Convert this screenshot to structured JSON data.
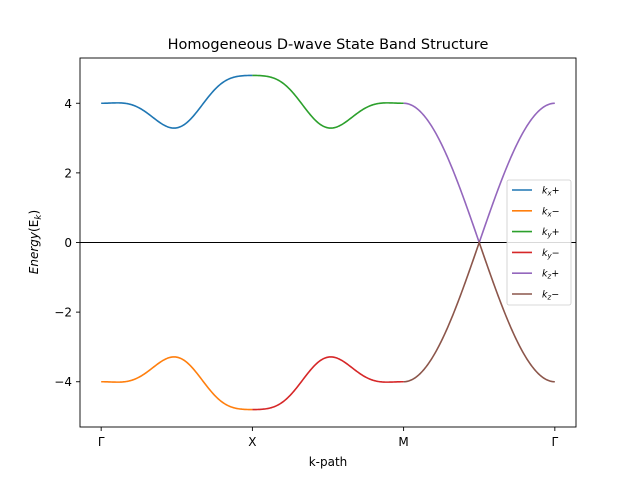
{
  "chart_data": {
    "type": "line",
    "title": "Homogeneous D-wave State Band Structure",
    "xlabel": "k-path",
    "ylabel_main": "Energy",
    "ylabel_sub": "(E",
    "ylabel_subscript": "k",
    "ylabel_close": ")",
    "xlim": [
      -0.14,
      3.14
    ],
    "ylim": [
      -5.3,
      5.3
    ],
    "grid": false,
    "legend_position": "right",
    "x_ticks": [
      {
        "value": 0,
        "label": "Γ"
      },
      {
        "value": 1,
        "label": "X"
      },
      {
        "value": 2,
        "label": "M"
      },
      {
        "value": 3,
        "label": "Γ"
      }
    ],
    "y_ticks": [
      {
        "value": -4,
        "label": "−4"
      },
      {
        "value": -2,
        "label": "−2"
      },
      {
        "value": 0,
        "label": "0"
      },
      {
        "value": 2,
        "label": "2"
      },
      {
        "value": 4,
        "label": "4"
      }
    ],
    "zero_line": {
      "value": 0,
      "color": "#000000"
    },
    "series": [
      {
        "name": "k_x+",
        "label_base": "k",
        "label_sub": "x",
        "label_sign": "+",
        "color": "#1f77b4",
        "segment": "GX",
        "sign": 1
      },
      {
        "name": "k_x−",
        "label_base": "k",
        "label_sub": "x",
        "label_sign": "−",
        "color": "#ff7f0e",
        "segment": "GX",
        "sign": -1
      },
      {
        "name": "k_y+",
        "label_base": "k",
        "label_sub": "y",
        "label_sign": "+",
        "color": "#2ca02c",
        "segment": "XM",
        "sign": 1
      },
      {
        "name": "k_y−",
        "label_base": "k",
        "label_sub": "y",
        "label_sign": "−",
        "color": "#d62728",
        "segment": "XM",
        "sign": -1
      },
      {
        "name": "k_z+",
        "label_base": "k",
        "label_sub": "z",
        "label_sign": "+",
        "color": "#9467bd",
        "segment": "MG",
        "sign": 1
      },
      {
        "name": "k_z−",
        "label_base": "k",
        "label_sub": "z",
        "label_sign": "−",
        "color": "#8c564b",
        "segment": "MG",
        "sign": -1
      }
    ],
    "key_values": {
      "gamma_energy": 4.0,
      "x_point_energy": 4.8,
      "gx_min_energy": 3.06,
      "gx_min_x": 0.45,
      "xm_min_energy": 3.06,
      "xm_min_x": 1.55,
      "m_energy": 4.0,
      "node_x": 2.5,
      "node_energy": 0.0
    }
  }
}
